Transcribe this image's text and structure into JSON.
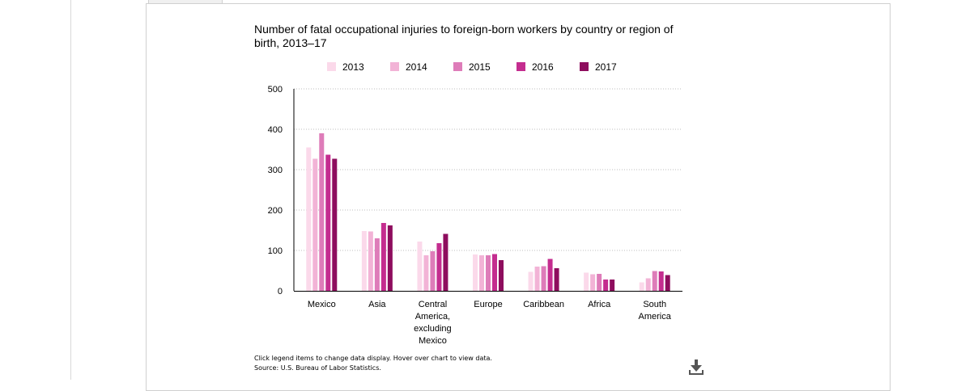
{
  "chart_data": {
    "type": "bar",
    "title": "Number of fatal occupational injuries to foreign-born workers by country or region of birth, 2013–17",
    "categories": [
      [
        "Mexico"
      ],
      [
        "Asia"
      ],
      [
        "Central",
        "America,",
        "excluding",
        "Mexico"
      ],
      [
        "Europe"
      ],
      [
        "Caribbean"
      ],
      [
        "Africa"
      ],
      [
        "South",
        "America"
      ]
    ],
    "series": [
      {
        "name": "2013",
        "color": "#fbd9ea",
        "values": [
          355,
          148,
          122,
          90,
          47,
          45,
          21
        ]
      },
      {
        "name": "2014",
        "color": "#f2b3d6",
        "values": [
          327,
          147,
          88,
          88,
          60,
          41,
          31
        ]
      },
      {
        "name": "2015",
        "color": "#de7cb9",
        "values": [
          390,
          130,
          98,
          88,
          61,
          42,
          49
        ]
      },
      {
        "name": "2016",
        "color": "#c42d8f",
        "values": [
          337,
          168,
          118,
          91,
          79,
          28,
          48
        ]
      },
      {
        "name": "2017",
        "color": "#8e0d5e",
        "values": [
          327,
          162,
          141,
          76,
          56,
          28,
          39
        ]
      }
    ],
    "yticks": [
      0,
      100,
      200,
      300,
      400,
      500
    ],
    "ylim": [
      0,
      500
    ],
    "grid": true,
    "legend": "top"
  },
  "notes": {
    "instructions": "Click legend items to change data display. Hover over chart to view data.",
    "source": "Source: U.S. Bureau of Labor Statistics."
  },
  "icons": {
    "download": "download-icon"
  }
}
